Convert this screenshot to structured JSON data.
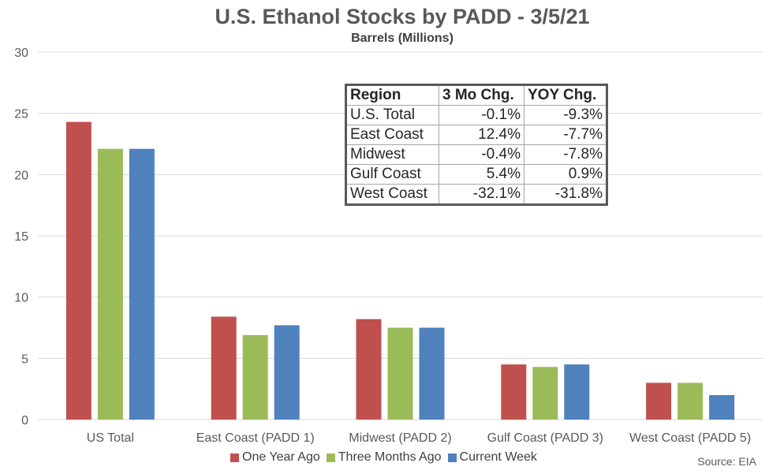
{
  "chart_data": {
    "type": "bar",
    "title": "U.S. Ethanol Stocks by PADD - 3/5/21",
    "subtitle": "Barrels (Millions)",
    "categories": [
      "US Total",
      "East Coast (PADD 1)",
      "Midwest (PADD 2)",
      "Gulf Coast (PADD 3)",
      "West Coast (PADD 5)"
    ],
    "series": [
      {
        "name": "One Year Ago",
        "color": "#c0504d",
        "values": [
          24.3,
          8.4,
          8.2,
          4.5,
          3.0
        ]
      },
      {
        "name": "Three Months Ago",
        "color": "#9bbb59",
        "values": [
          22.1,
          6.9,
          7.5,
          4.3,
          3.0
        ]
      },
      {
        "name": "Current Week",
        "color": "#4f81bd",
        "values": [
          22.1,
          7.7,
          7.5,
          4.5,
          2.0
        ]
      }
    ],
    "ylim": [
      0,
      30
    ],
    "yticks": [
      0,
      5,
      10,
      15,
      20,
      25,
      30
    ],
    "grid": true,
    "legend_position": "bottom",
    "source": "Source: EIA"
  },
  "table": {
    "headers": [
      "Region",
      "3 Mo Chg.",
      "YOY Chg."
    ],
    "rows": [
      [
        "U.S. Total",
        "-0.1%",
        "-9.3%"
      ],
      [
        "East Coast",
        "12.4%",
        "-7.7%"
      ],
      [
        "Midwest",
        "-0.4%",
        "-7.8%"
      ],
      [
        "Gulf Coast",
        "5.4%",
        "0.9%"
      ],
      [
        "West Coast",
        "-32.1%",
        "-31.8%"
      ]
    ]
  }
}
